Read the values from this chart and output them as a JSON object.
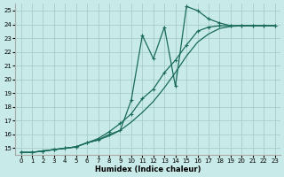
{
  "xlabel": "Humidex (Indice chaleur)",
  "bg_color": "#c8eae8",
  "grid_color": "#a0c8c4",
  "line_color": "#1a6b5a",
  "xlim": [
    -0.5,
    23.5
  ],
  "ylim": [
    14.5,
    25.5
  ],
  "xticks": [
    0,
    1,
    2,
    3,
    4,
    5,
    6,
    7,
    8,
    9,
    10,
    11,
    12,
    13,
    14,
    15,
    16,
    17,
    18,
    19,
    20,
    21,
    22,
    23
  ],
  "yticks": [
    15,
    16,
    17,
    18,
    19,
    20,
    21,
    22,
    23,
    24,
    25
  ],
  "line1_x": [
    0,
    1,
    2,
    3,
    4,
    5,
    6,
    7,
    8,
    9,
    10,
    11,
    12,
    13,
    14,
    15,
    16,
    17,
    18,
    19,
    20,
    21,
    22,
    23
  ],
  "line1_y": [
    14.7,
    14.7,
    14.8,
    14.9,
    15.0,
    15.1,
    15.4,
    15.6,
    15.9,
    16.3,
    16.9,
    17.6,
    18.4,
    19.4,
    20.5,
    21.7,
    22.7,
    23.3,
    23.7,
    23.85,
    23.9,
    23.9,
    23.9,
    23.9
  ],
  "line2_x": [
    0,
    1,
    2,
    3,
    4,
    5,
    6,
    7,
    8,
    9,
    10,
    11,
    12,
    13,
    14,
    15,
    16,
    17,
    18,
    19,
    20,
    21,
    22,
    23
  ],
  "line2_y": [
    14.7,
    14.7,
    14.8,
    14.9,
    15.0,
    15.1,
    15.4,
    15.7,
    16.2,
    16.8,
    17.5,
    18.6,
    19.3,
    20.5,
    21.4,
    22.5,
    23.5,
    23.8,
    23.9,
    23.9,
    23.9,
    23.9,
    23.9,
    23.9
  ],
  "line3_x": [
    0,
    1,
    2,
    3,
    4,
    5,
    6,
    7,
    8,
    9,
    10,
    11,
    12,
    13,
    14,
    15,
    16,
    17,
    18,
    19,
    20,
    21,
    22,
    23
  ],
  "line3_y": [
    14.7,
    14.7,
    14.8,
    14.9,
    15.0,
    15.1,
    15.4,
    15.6,
    16.0,
    16.3,
    18.5,
    23.2,
    21.5,
    23.8,
    19.5,
    25.3,
    25.0,
    24.4,
    24.1,
    23.9,
    23.9,
    23.9,
    23.9,
    23.9
  ]
}
